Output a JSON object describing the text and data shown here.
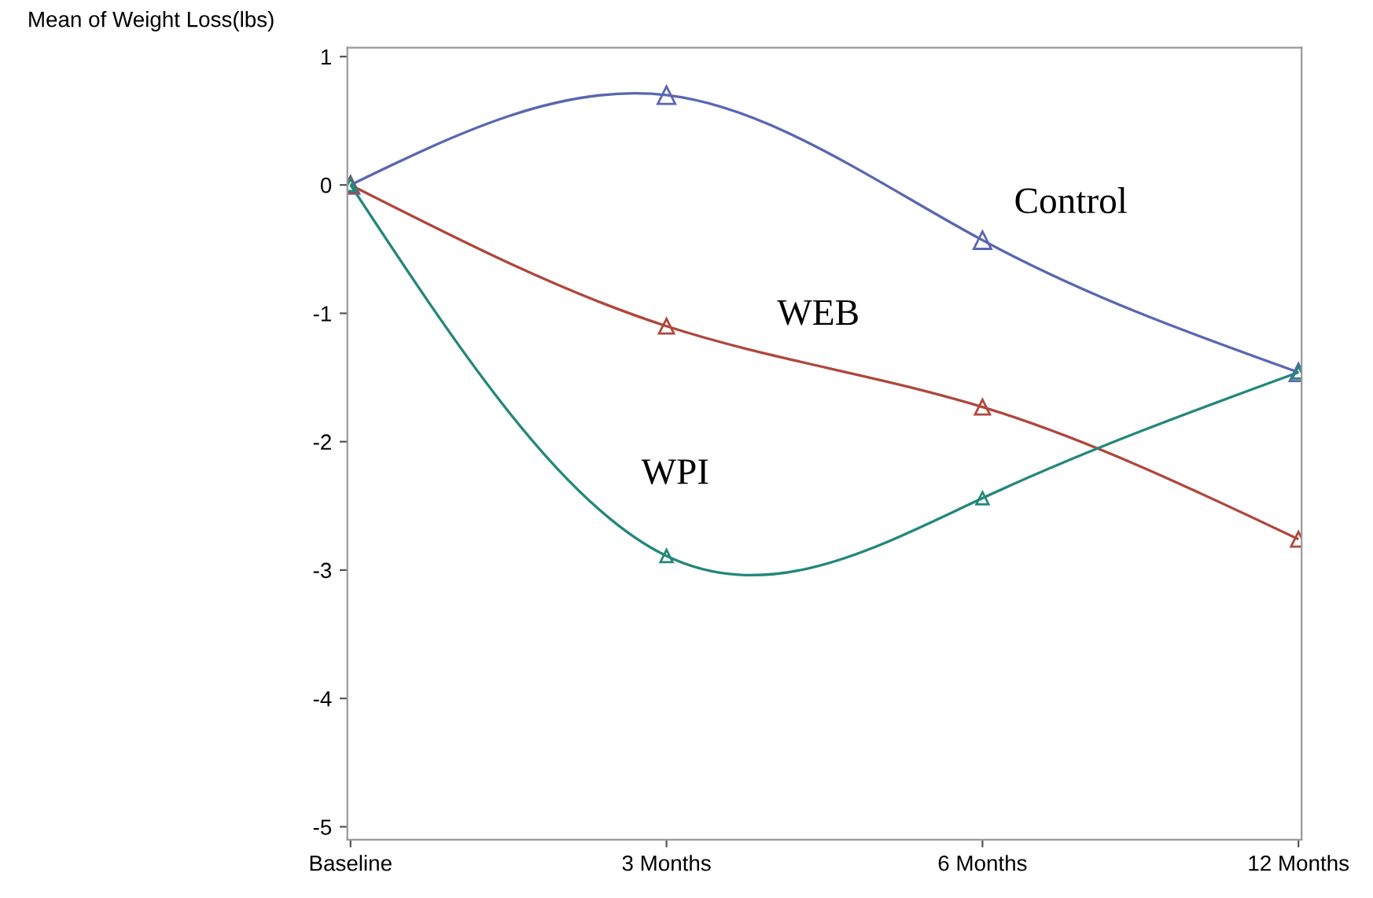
{
  "chart_data": {
    "type": "line",
    "ylabel": "Mean of Weight Loss(lbs)",
    "categories": [
      "Baseline",
      "3 Months",
      "6 Months",
      "12 Months"
    ],
    "series": [
      {
        "name": "Control",
        "color": "#5a66b0",
        "values": [
          0,
          0.7,
          -0.43,
          -1.46
        ]
      },
      {
        "name": "WEB",
        "color": "#b0463c",
        "values": [
          0,
          -1.1,
          -1.73,
          -2.76
        ]
      },
      {
        "name": "WPI",
        "color": "#23877a",
        "values": [
          0,
          -2.89,
          -2.44,
          -1.46
        ]
      }
    ],
    "ylim": [
      -5.1,
      1.07
    ],
    "yticks": [
      -5,
      -4,
      -3,
      -2,
      -1,
      0,
      1
    ],
    "marker": "triangle",
    "line_style": "solid",
    "grid": false,
    "legend": false
  }
}
